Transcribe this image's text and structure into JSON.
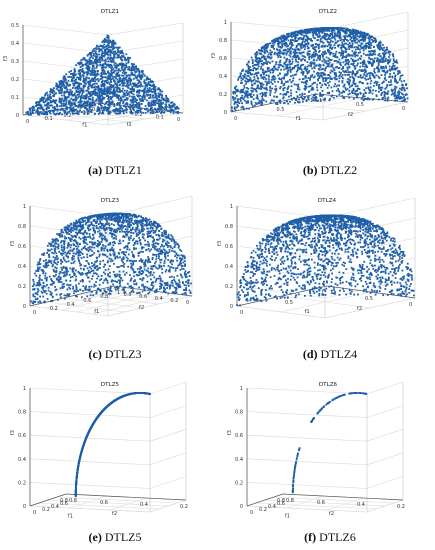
{
  "chart_data": [
    {
      "type": "scatter",
      "title": "DTLZ1",
      "pareto_front": "linear plane f1+f2+f3=0.5",
      "xlabel": "f1",
      "ylabel": "f2",
      "zlabel": "f3",
      "xlim": [
        0,
        0.5
      ],
      "ylim": [
        0,
        0.5
      ],
      "zlim": [
        0,
        0.5
      ],
      "xticks": [
        "0",
        "0.1",
        "0.2",
        "0.3",
        "0.4"
      ],
      "yticks": [
        "0",
        "0.1",
        "0.2",
        "0.3",
        "0.4"
      ],
      "zticks": [
        "0",
        "0.1",
        "0.2",
        "0.3",
        "0.4",
        "0.5"
      ],
      "color": "#1f5fa8",
      "grid": true
    },
    {
      "type": "scatter",
      "title": "DTLZ2",
      "pareto_front": "unit sphere octant",
      "xlabel": "f1",
      "ylabel": "f2",
      "zlabel": "f3",
      "xlim": [
        0,
        1
      ],
      "ylim": [
        0,
        1
      ],
      "zlim": [
        0,
        1
      ],
      "xticks": [
        "0",
        "0.5",
        "1"
      ],
      "yticks": [
        "0",
        "0.5",
        "1"
      ],
      "zticks": [
        "0",
        "0.2",
        "0.4",
        "0.6",
        "0.8",
        "1"
      ],
      "color": "#1f5fa8",
      "grid": true
    },
    {
      "type": "scatter",
      "title": "DTLZ3",
      "pareto_front": "unit sphere octant",
      "xlabel": "f1",
      "ylabel": "f2",
      "zlabel": "f3",
      "xlim": [
        0,
        1
      ],
      "ylim": [
        0,
        1
      ],
      "zlim": [
        0,
        1
      ],
      "xticks": [
        "0",
        "0.2",
        "0.4",
        "0.6",
        "0.8",
        "1"
      ],
      "yticks": [
        "0",
        "0.2",
        "0.4",
        "0.6",
        "0.8",
        "1"
      ],
      "zticks": [
        "0",
        "0.2",
        "0.4",
        "0.6",
        "0.8",
        "1"
      ],
      "color": "#1f5fa8",
      "grid": true
    },
    {
      "type": "scatter",
      "title": "DTLZ4",
      "pareto_front": "unit sphere octant",
      "xlabel": "f1",
      "ylabel": "f2",
      "zlabel": "f3",
      "xlim": [
        0,
        1
      ],
      "ylim": [
        0,
        1
      ],
      "zlim": [
        0,
        1
      ],
      "xticks": [
        "0",
        "0.5",
        "1"
      ],
      "yticks": [
        "0",
        "0.5",
        "1"
      ],
      "zticks": [
        "0",
        "0.2",
        "0.4",
        "0.6",
        "0.8",
        "1"
      ],
      "color": "#1f5fa8",
      "grid": true
    },
    {
      "type": "line",
      "title": "DTLZ5",
      "pareto_front": "degenerate curve",
      "xlabel": "f1",
      "ylabel": "f2",
      "zlabel": "f3",
      "xlim": [
        0,
        0.8
      ],
      "ylim": [
        0,
        0.8
      ],
      "zlim": [
        0,
        1
      ],
      "xticks": [
        "0",
        "0.2",
        "0.4",
        "0.6",
        "0.8"
      ],
      "yticks": [
        "0.2",
        "0.4",
        "0.6",
        "0.8"
      ],
      "zticks": [
        "0",
        "0.2",
        "0.4",
        "0.6",
        "0.8",
        "1"
      ],
      "color": "#1f5fa8",
      "grid": true
    },
    {
      "type": "scatter",
      "title": "DTLZ6",
      "pareto_front": "degenerate curve (sparse points)",
      "xlabel": "f1",
      "ylabel": "f2",
      "zlabel": "f3",
      "xlim": [
        0,
        0.8
      ],
      "ylim": [
        0,
        0.8
      ],
      "zlim": [
        0,
        1
      ],
      "xticks": [
        "0",
        "0.2",
        "0.4",
        "0.6",
        "0.8"
      ],
      "yticks": [
        "0.2",
        "0.4",
        "0.6",
        "0.8"
      ],
      "zticks": [
        "0",
        "0.2",
        "0.4",
        "0.6",
        "0.8",
        "1"
      ],
      "color": "#1f5fa8",
      "grid": true
    }
  ],
  "captions": [
    {
      "label": "(a)",
      "text": "DTLZ1"
    },
    {
      "label": "(b)",
      "text": "DTLZ2"
    },
    {
      "label": "(c)",
      "text": "DTLZ3"
    },
    {
      "label": "(d)",
      "text": "DTLZ4"
    },
    {
      "label": "(e)",
      "text": "DTLZ5"
    },
    {
      "label": "(f)",
      "text": "DTLZ6"
    }
  ]
}
